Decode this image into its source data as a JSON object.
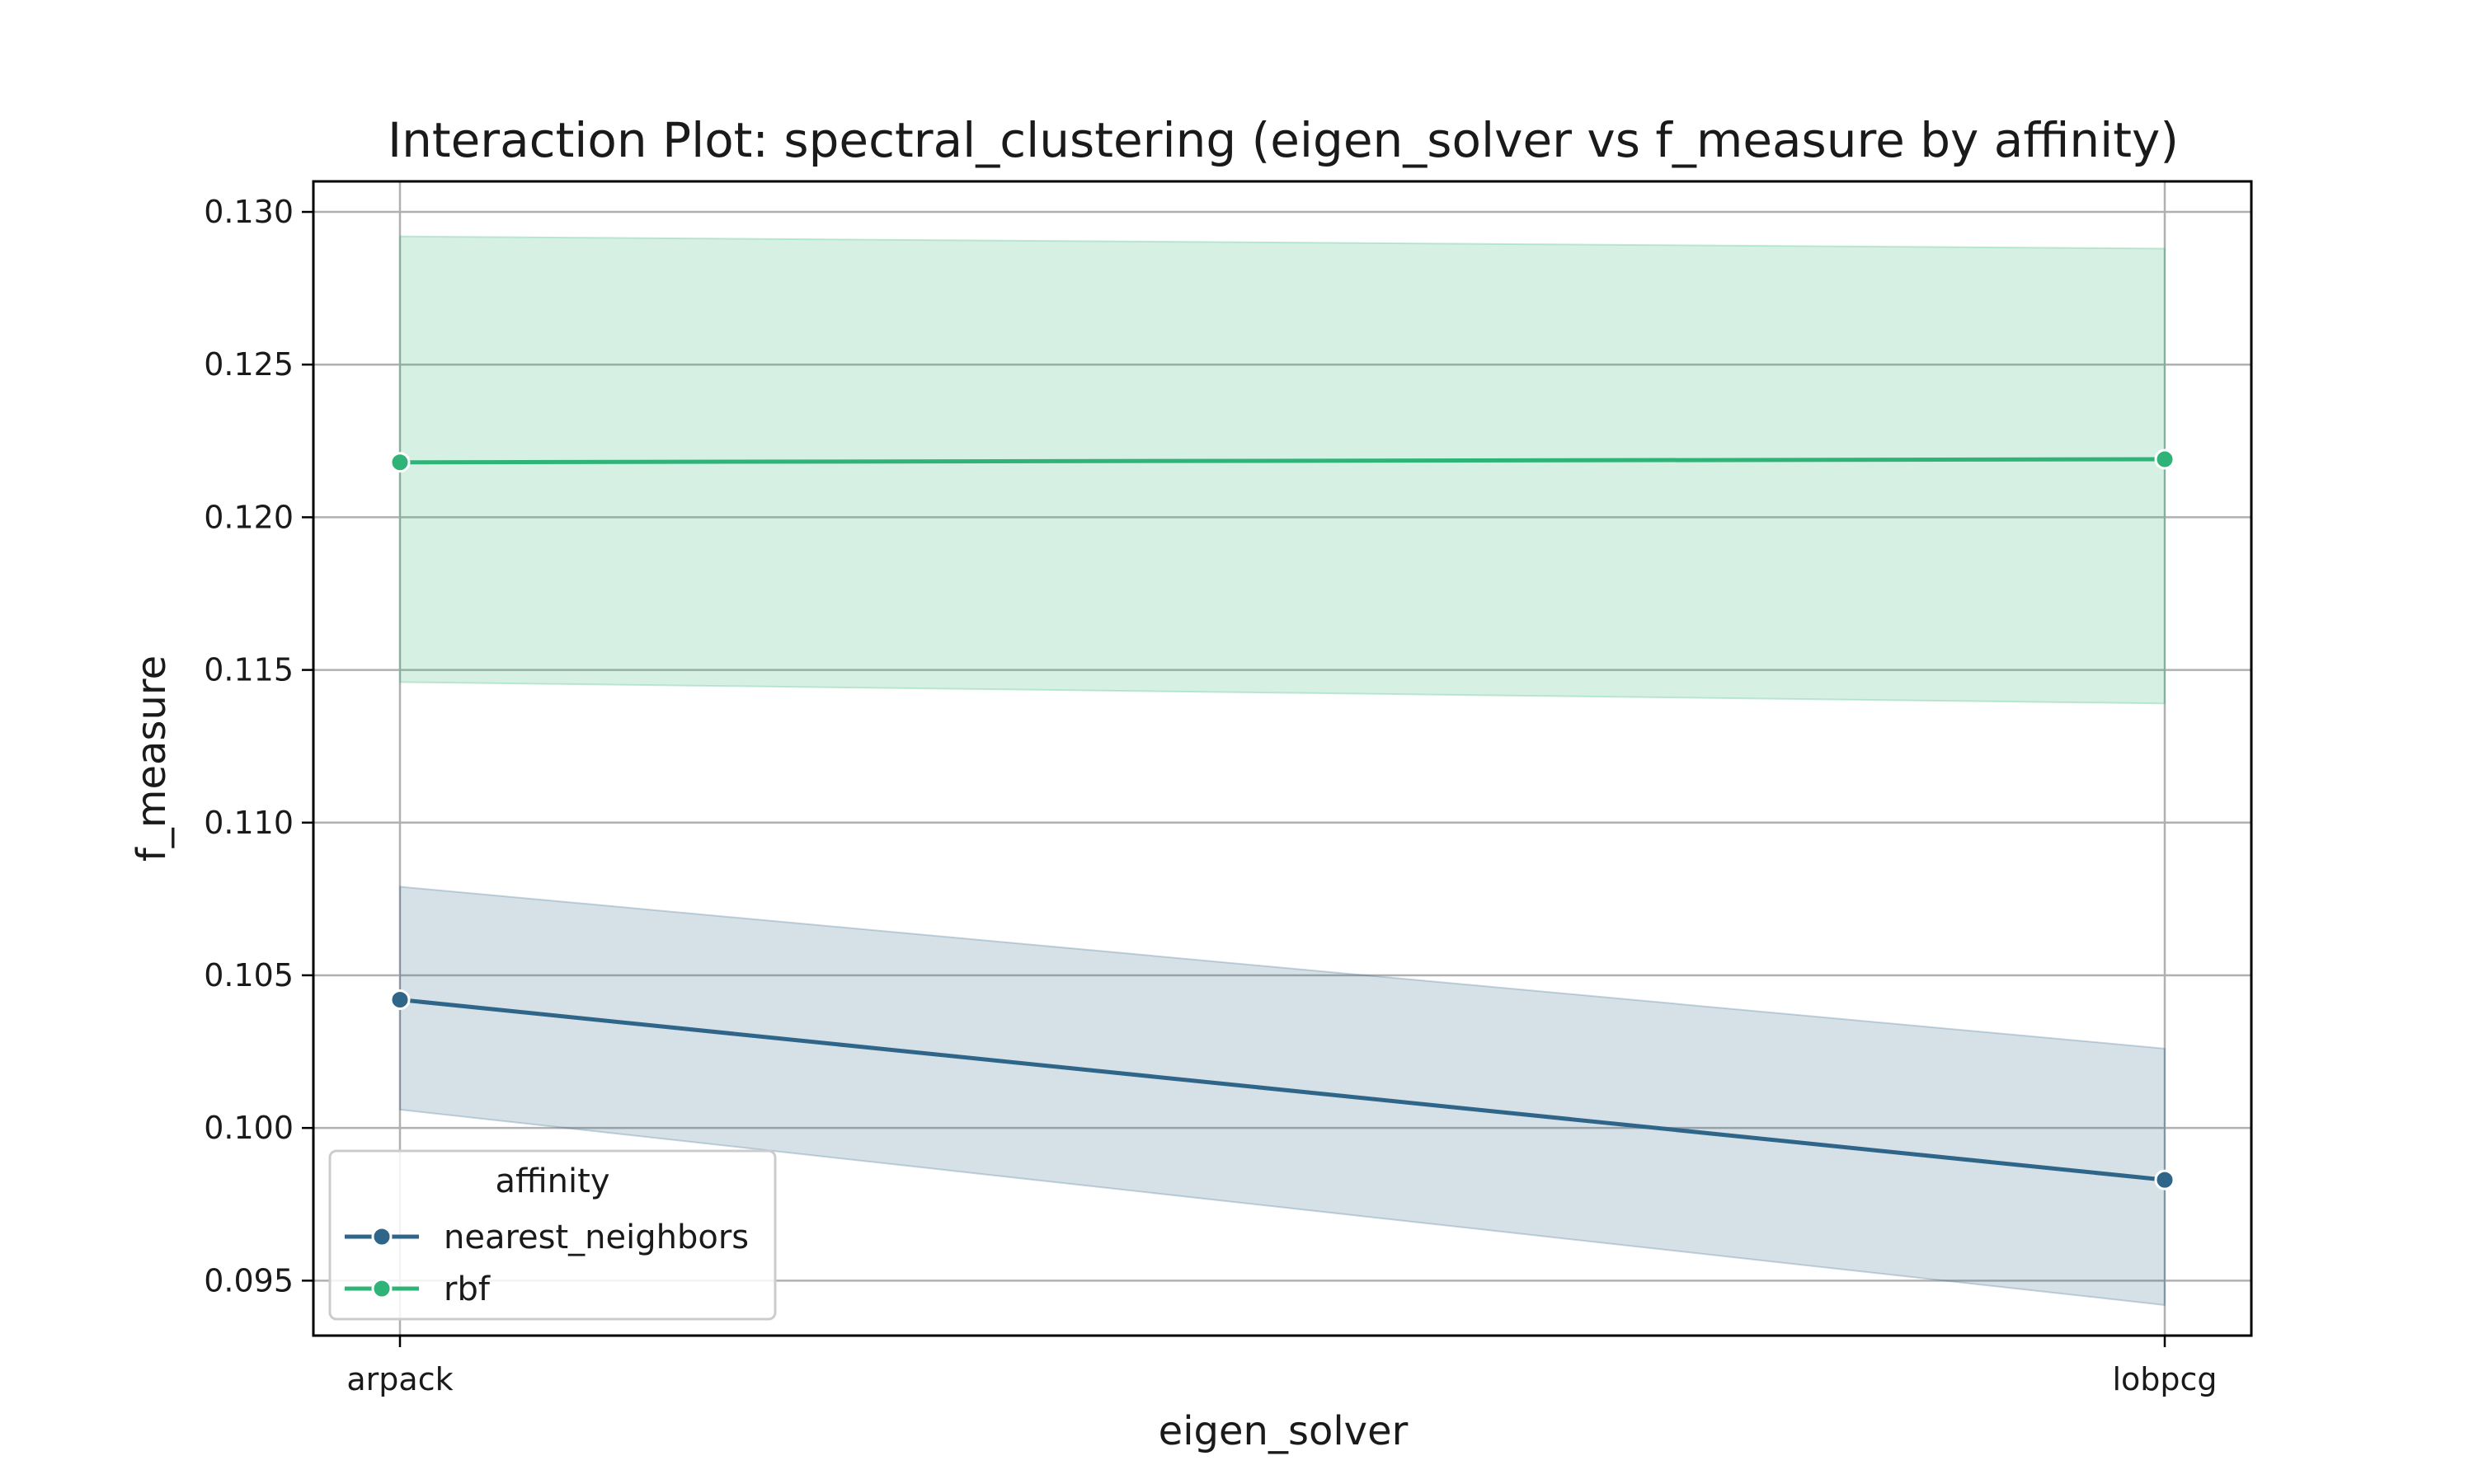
{
  "chart_data": {
    "type": "line",
    "title": "Interaction Plot: spectral_clustering (eigen_solver vs f_measure by affinity)",
    "xlabel": "eigen_solver",
    "ylabel": "f_measure",
    "categories": [
      "arpack",
      "lobpcg"
    ],
    "ylim": [
      0.0932,
      0.131
    ],
    "yticks": [
      "0.095",
      "0.100",
      "0.105",
      "0.110",
      "0.115",
      "0.120",
      "0.125",
      "0.130"
    ],
    "grid": true,
    "legend": {
      "title": "affinity",
      "placement": "lower-left"
    },
    "series": [
      {
        "name": "nearest_neighbors",
        "color": "#2e6589",
        "values": [
          0.1042,
          0.0983
        ],
        "ci_low": [
          0.1006,
          0.0942
        ],
        "ci_high": [
          0.1079,
          0.1026
        ]
      },
      {
        "name": "rbf",
        "color": "#30b378",
        "values": [
          0.1218,
          0.1219
        ],
        "ci_low": [
          0.1146,
          0.1139
        ],
        "ci_high": [
          0.1292,
          0.1288
        ]
      }
    ]
  }
}
